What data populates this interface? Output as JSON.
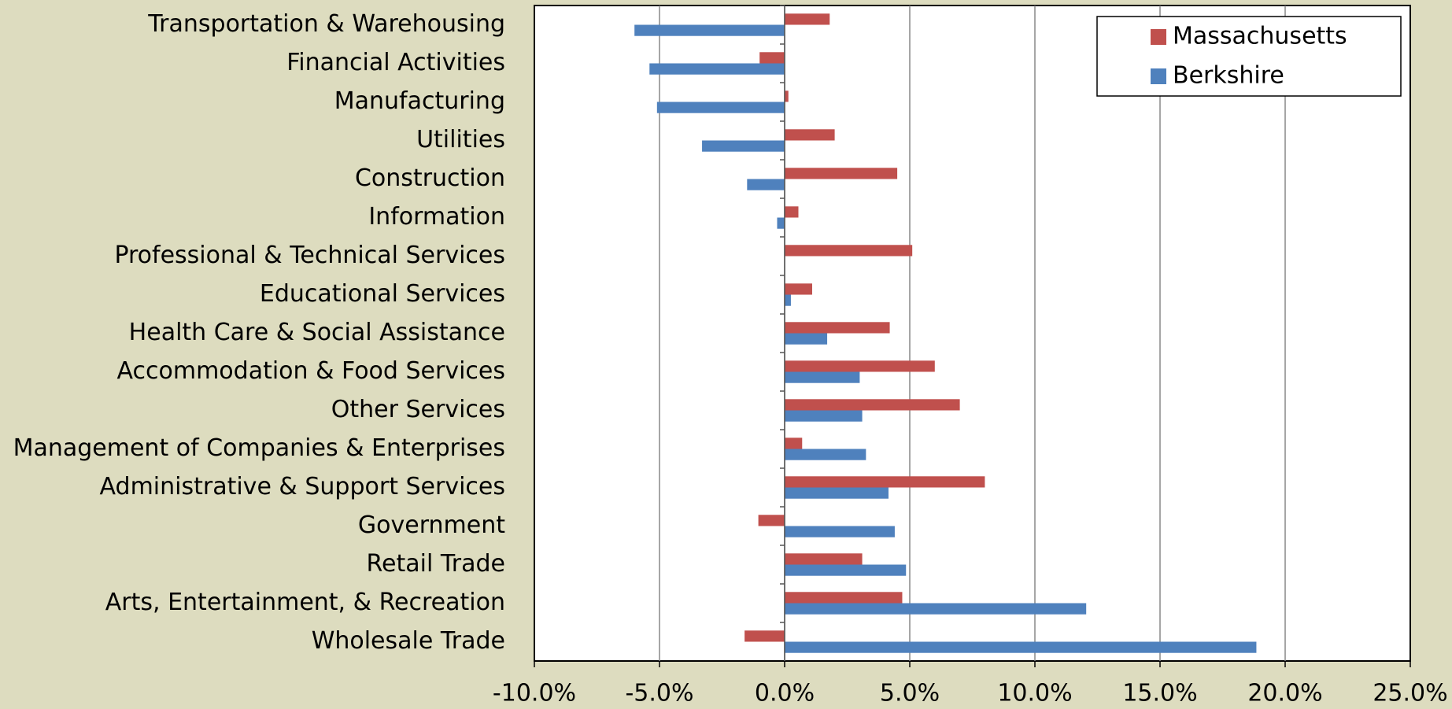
{
  "chart_data": {
    "type": "barh",
    "categories": [
      "Transportation & Warehousing",
      "Financial Activities",
      "Manufacturing",
      "Utilities",
      "Construction",
      "Information",
      "Professional & Technical Services",
      "Educational Services",
      "Health Care & Social Assistance",
      "Accommodation & Food Services",
      "Other Services",
      "Management of Companies & Enterprises",
      "Administrative & Support Services",
      "Government",
      "Retail Trade",
      "Arts, Entertainment, & Recreation",
      "Wholesale Trade"
    ],
    "series": [
      {
        "name": "Massachusetts",
        "color": "#c0504d",
        "values": [
          1.8,
          -1.0,
          0.15,
          2.0,
          4.5,
          0.55,
          5.1,
          1.1,
          4.2,
          6.0,
          7.0,
          0.7,
          8.0,
          -1.05,
          3.1,
          4.7,
          -1.6
        ]
      },
      {
        "name": "Berkshire",
        "color": "#4f81bd",
        "values": [
          -6.0,
          -5.4,
          -5.1,
          -3.3,
          -1.5,
          -0.3,
          0.0,
          0.25,
          1.7,
          3.0,
          3.1,
          3.25,
          4.15,
          4.4,
          4.85,
          12.05,
          18.85
        ]
      }
    ],
    "xlim": [
      -10,
      25
    ],
    "xticks": [
      {
        "value": -10,
        "label": "-10.0%"
      },
      {
        "value": -5,
        "label": "-5.0%"
      },
      {
        "value": 0,
        "label": "0.0%"
      },
      {
        "value": 5,
        "label": "5.0%"
      },
      {
        "value": 10,
        "label": "10.0%"
      },
      {
        "value": 15,
        "label": "15.0%"
      },
      {
        "value": 20,
        "label": "20.0%"
      },
      {
        "value": 25,
        "label": "25.0%"
      }
    ],
    "grid": true,
    "legend": "upper right"
  }
}
